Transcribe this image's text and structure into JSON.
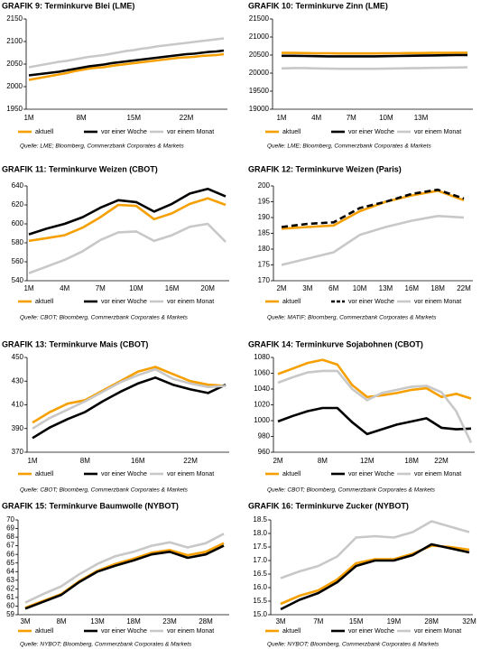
{
  "chart_data": [
    {
      "type": "line",
      "title": "GRAFIK 9: Terminkurve Blei (LME)",
      "categories": [
        "1M",
        null,
        null,
        null,
        null,
        null,
        null,
        "8M",
        null,
        null,
        null,
        null,
        null,
        null,
        "15M",
        null,
        null,
        null,
        null,
        null,
        null,
        "22M",
        null,
        null,
        null,
        null,
        null
      ],
      "ylim": [
        1950,
        2150
      ],
      "yticks": [
        1950,
        2000,
        2050,
        2100,
        2150
      ],
      "series": [
        {
          "name": "aktuell",
          "color": "#f5a000",
          "values": [
            2015,
            2018,
            2021,
            2024,
            2027,
            2030,
            2034,
            2037,
            2040,
            2042,
            2043,
            2046,
            2048,
            2050,
            2052,
            2054,
            2056,
            2058,
            2060,
            2062,
            2064,
            2065,
            2066,
            2068,
            2069,
            2070,
            2072
          ]
        },
        {
          "name": "vor einer Woche",
          "color": "#000000",
          "values": [
            2025,
            2027,
            2029,
            2031,
            2033,
            2036,
            2039,
            2042,
            2045,
            2047,
            2049,
            2052,
            2054,
            2056,
            2058,
            2060,
            2062,
            2064,
            2066,
            2068,
            2070,
            2072,
            2073,
            2075,
            2077,
            2078,
            2080
          ]
        },
        {
          "name": "vor einem Monat",
          "color": "#c8c8c8",
          "values": [
            2043,
            2046,
            2049,
            2052,
            2055,
            2057,
            2060,
            2063,
            2066,
            2068,
            2070,
            2073,
            2076,
            2079,
            2081,
            2084,
            2086,
            2089,
            2091,
            2093,
            2095,
            2097,
            2099,
            2101,
            2103,
            2105,
            2107
          ]
        }
      ],
      "source": "Quelle: LME; Bloomberg, Commerzbank Corporates & Markets"
    },
    {
      "type": "line",
      "title": "GRAFIK 10: Terminkurve Zinn (LME)",
      "categories": [
        "1M",
        null,
        null,
        "4M",
        null,
        null,
        "7M",
        null,
        null,
        "10M",
        null,
        null,
        "13M",
        null,
        null,
        null,
        null
      ],
      "ylim": [
        19000,
        21500
      ],
      "yticks": [
        19000,
        19500,
        20000,
        20500,
        21000,
        21500
      ],
      "series": [
        {
          "name": "aktuell",
          "color": "#f5a000",
          "values": [
            20560,
            20560,
            20555,
            20550,
            20550,
            20545,
            20545,
            20545,
            20545,
            20550,
            20550,
            20555,
            20555,
            20560,
            20560,
            20565,
            20565
          ]
        },
        {
          "name": "vor einer Woche",
          "color": "#000000",
          "values": [
            20480,
            20480,
            20475,
            20470,
            20465,
            20465,
            20465,
            20465,
            20465,
            20470,
            20475,
            20480,
            20485,
            20490,
            20495,
            20500,
            20500
          ]
        },
        {
          "name": "vor einem Monat",
          "color": "#c8c8c8",
          "values": [
            20130,
            20140,
            20140,
            20130,
            20125,
            20120,
            20120,
            20120,
            20120,
            20125,
            20130,
            20135,
            20140,
            20145,
            20150,
            20155,
            20160
          ]
        }
      ],
      "source": "Quelle: LME; Bloomberg, Commerzbank Corporates & Markets"
    },
    {
      "type": "line",
      "title": "GRAFIK 11: Terminkurve Weizen (CBOT)",
      "categories": [
        "1M",
        null,
        "4M",
        null,
        "7M",
        null,
        "10M",
        null,
        "16M",
        null,
        "20M",
        null
      ],
      "ylim": [
        540,
        640
      ],
      "yticks": [
        540,
        560,
        580,
        600,
        620,
        640
      ],
      "series": [
        {
          "name": "aktuell",
          "color": "#f5a000",
          "values": [
            582,
            585,
            588,
            596,
            607,
            620,
            619,
            605,
            611,
            621,
            627,
            620
          ]
        },
        {
          "name": "vor einer Woche",
          "color": "#000000",
          "values": [
            589,
            595,
            600,
            607,
            617,
            625,
            623,
            613,
            621,
            632,
            637,
            629
          ]
        },
        {
          "name": "vor einem Monat",
          "color": "#c8c8c8",
          "values": [
            548,
            555,
            562,
            571,
            583,
            591,
            592,
            582,
            588,
            597,
            600,
            581
          ]
        }
      ],
      "source": "Quelle: CBOT; Bloomberg, Commerzbank Corporates & Markets"
    },
    {
      "type": "line",
      "title": "GRAFIK 12: Terminkurve Weizen (Paris)",
      "categories": [
        "2M",
        "3M",
        "6M",
        "10M",
        "13M",
        "16M",
        "18M",
        "22M"
      ],
      "ylim": [
        170,
        200
      ],
      "yticks": [
        170,
        175,
        180,
        185,
        190,
        195,
        200
      ],
      "series": [
        {
          "name": "aktuell",
          "color": "#f5a000",
          "values": [
            186.5,
            187,
            187.5,
            192,
            195,
            197,
            198.5,
            195.5
          ]
        },
        {
          "name": "vor einer Woche",
          "color": "#000000",
          "dashed": true,
          "values": [
            187,
            188,
            188.5,
            193,
            195,
            197.5,
            198.8,
            196
          ]
        },
        {
          "name": "vor einem Monat",
          "color": "#c8c8c8",
          "values": [
            175,
            177,
            179,
            184.5,
            187,
            189,
            190.5,
            190
          ]
        }
      ],
      "source": "Quelle: MATIF; Bloomberg, Commerzbank Corporates & Markets"
    },
    {
      "type": "line",
      "title": "GRAFIK 13: Terminkurve Mais (CBOT)",
      "categories": [
        "1M",
        null,
        null,
        "8M",
        null,
        null,
        "16M",
        null,
        null,
        "22M",
        null,
        null
      ],
      "ylim": [
        370,
        450
      ],
      "yticks": [
        370,
        390,
        410,
        430,
        450
      ],
      "series": [
        {
          "name": "aktuell",
          "color": "#f5a000",
          "values": [
            395,
            404,
            411,
            414,
            422,
            430,
            438,
            442,
            436,
            430,
            427,
            426
          ]
        },
        {
          "name": "vor einer Woche",
          "color": "#000000",
          "values": [
            382,
            391,
            398,
            404,
            413,
            421,
            428,
            433,
            427,
            423,
            420,
            427
          ]
        },
        {
          "name": "vor einem Monat",
          "color": "#c8c8c8",
          "values": [
            390,
            399,
            406,
            413,
            421,
            429,
            435,
            440,
            432,
            428,
            425,
            426
          ]
        }
      ],
      "source": "Quelle: CBOT; Bloomberg, Commerzbank Corporates & Markets"
    },
    {
      "type": "line",
      "title": "GRAFIK 14: Terminkurve Sojabohnen (CBOT)",
      "categories": [
        "2M",
        null,
        null,
        "8M",
        null,
        null,
        "12M",
        null,
        null,
        "18M",
        null,
        "22M",
        null,
        null
      ],
      "ylim": [
        960,
        1080
      ],
      "yticks": [
        960,
        980,
        1000,
        1020,
        1040,
        1060,
        1080
      ],
      "series": [
        {
          "name": "aktuell",
          "color": "#f5a000",
          "values": [
            1059,
            1066,
            1073,
            1077,
            1071,
            1045,
            1030,
            1032,
            1035,
            1039,
            1041,
            1030,
            1034,
            1028
          ]
        },
        {
          "name": "vor einer Woche",
          "color": "#000000",
          "values": [
            999,
            1006,
            1012,
            1016,
            1016,
            998,
            983,
            989,
            995,
            999,
            1003,
            991,
            989,
            990
          ]
        },
        {
          "name": "vor einem Monat",
          "color": "#c8c8c8",
          "values": [
            1048,
            1055,
            1061,
            1063,
            1063,
            1040,
            1026,
            1035,
            1039,
            1043,
            1044,
            1036,
            1012,
            972
          ]
        }
      ],
      "source": "Quelle: CBOT; Bloomberg, Commerzbank Corporates & Markets"
    },
    {
      "type": "line",
      "title": "GRAFIK 15: Terminkurve Baumwolle (NYBOT)",
      "categories": [
        "3M",
        null,
        "8M",
        null,
        "13M",
        null,
        "18M",
        null,
        "23M",
        null,
        "28M",
        null
      ],
      "ylim": [
        59,
        70
      ],
      "yticks": [
        59,
        60,
        61,
        62,
        63,
        64,
        65,
        66,
        67,
        68,
        69,
        70
      ],
      "series": [
        {
          "name": "aktuell",
          "color": "#f5a000",
          "values": [
            59.8,
            60.6,
            61.4,
            62.9,
            64.1,
            64.9,
            65.5,
            66.2,
            66.5,
            65.9,
            66.3,
            67.3
          ]
        },
        {
          "name": "vor einer Woche",
          "color": "#000000",
          "values": [
            59.7,
            60.5,
            61.3,
            62.8,
            64.0,
            64.7,
            65.3,
            66.0,
            66.3,
            65.6,
            66.0,
            67.0
          ]
        },
        {
          "name": "vor einem Monat",
          "color": "#c8c8c8",
          "values": [
            60.4,
            61.4,
            62.3,
            63.7,
            64.9,
            65.8,
            66.3,
            67.0,
            67.4,
            66.8,
            67.3,
            68.4
          ]
        }
      ],
      "source": "Quelle: NYBOT; Bloomberg, Commerzbank Corporates & Markets"
    },
    {
      "type": "line",
      "title": "GRAFIK 16: Terminkurve Zucker (NYBOT)",
      "categories": [
        "3M",
        null,
        "7M",
        null,
        "15M",
        null,
        "19M",
        null,
        "28M",
        null,
        "32M"
      ],
      "ylim": [
        15,
        18.5
      ],
      "yticks": [
        {
          "value": 15,
          "label": "15.0"
        },
        15.5,
        {
          "value": 16,
          "label": "16.0"
        },
        16.5,
        {
          "value": 17,
          "label": "17.0"
        },
        17.5,
        {
          "value": 18,
          "label": "18.0"
        },
        18.5
      ],
      "series": [
        {
          "name": "aktuell",
          "color": "#f5a000",
          "values": [
            15.4,
            15.7,
            15.9,
            16.3,
            16.9,
            17.05,
            17.05,
            17.25,
            17.55,
            17.5,
            17.4
          ]
        },
        {
          "name": "vor einer Woche",
          "color": "#000000",
          "values": [
            15.2,
            15.55,
            15.8,
            16.2,
            16.8,
            17.0,
            17.0,
            17.2,
            17.6,
            17.45,
            17.3
          ]
        },
        {
          "name": "vor einem Monat",
          "color": "#c8c8c8",
          "values": [
            16.35,
            16.6,
            16.8,
            17.15,
            17.85,
            17.9,
            17.85,
            18.05,
            18.45,
            18.25,
            18.05
          ]
        }
      ],
      "source": "Quelle: NYBOT; Bloomberg, Commerzbank Corporates & Markets"
    }
  ]
}
